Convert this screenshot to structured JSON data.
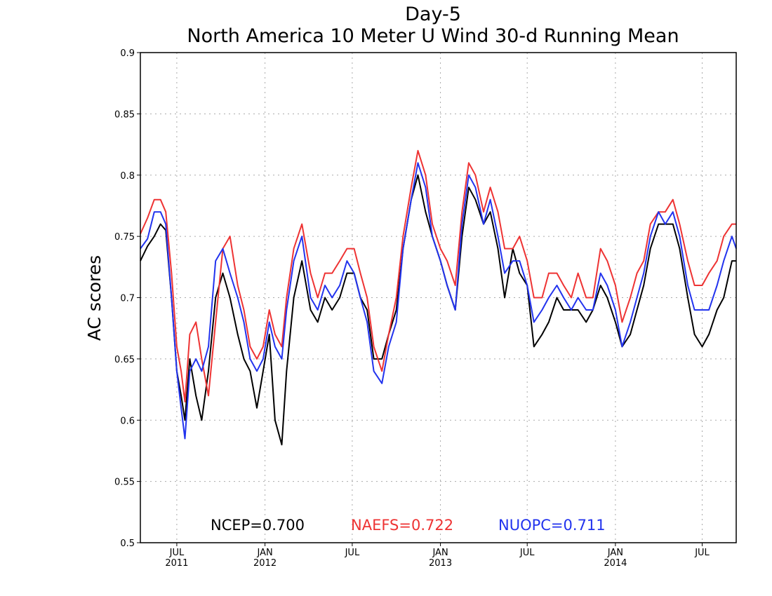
{
  "chart_data": {
    "type": "line",
    "title": "Day-5",
    "subtitle": "North America 10 Meter U Wind 30-d Running Mean",
    "xlabel": "",
    "ylabel": "AC scores",
    "ylim": [
      0.5,
      0.9
    ],
    "xlim": [
      "2011-04-16",
      "2014-09-10"
    ],
    "y_ticks": [
      "0.5",
      "0.55",
      "0.6",
      "0.65",
      "0.7",
      "0.75",
      "0.8",
      "0.85",
      "0.9"
    ],
    "x_ticks": [
      {
        "date": "2011-07-01",
        "month": "JUL",
        "year": "2011"
      },
      {
        "date": "2012-01-01",
        "month": "JAN",
        "year": "2012"
      },
      {
        "date": "2012-07-01",
        "month": "JUL",
        "year": ""
      },
      {
        "date": "2013-01-01",
        "month": "JAN",
        "year": "2013"
      },
      {
        "date": "2013-07-01",
        "month": "JUL",
        "year": ""
      },
      {
        "date": "2014-01-01",
        "month": "JAN",
        "year": "2014"
      },
      {
        "date": "2014-07-01",
        "month": "JUL",
        "year": ""
      }
    ],
    "grid": true,
    "legend_placement": "bottom",
    "legend": [
      {
        "label": "NCEP=0.700",
        "color": "#000000"
      },
      {
        "label": "NAEFS=0.722",
        "color": "#ee3333"
      },
      {
        "label": "NUOPC=0.711",
        "color": "#2233ee"
      }
    ],
    "series": [
      {
        "color": "#000000",
        "x": [
          "2011-04-16",
          "2011-05-01",
          "2011-05-15",
          "2011-05-28",
          "2011-06-08",
          "2011-06-20",
          "2011-07-01",
          "2011-07-10",
          "2011-07-18",
          "2011-07-28",
          "2011-08-10",
          "2011-08-22",
          "2011-09-05",
          "2011-09-20",
          "2011-10-05",
          "2011-10-20",
          "2011-11-05",
          "2011-11-18",
          "2011-12-01",
          "2011-12-15",
          "2011-12-28",
          "2012-01-10",
          "2012-01-22",
          "2012-02-05",
          "2012-02-15",
          "2012-03-01",
          "2012-03-18",
          "2012-04-05",
          "2012-04-20",
          "2012-05-05",
          "2012-05-20",
          "2012-06-05",
          "2012-06-20",
          "2012-07-05",
          "2012-07-18",
          "2012-08-01",
          "2012-08-15",
          "2012-09-01",
          "2012-09-15",
          "2012-10-01",
          "2012-10-15",
          "2012-11-01",
          "2012-11-15",
          "2012-12-01",
          "2012-12-15",
          "2013-01-01",
          "2013-01-15",
          "2013-02-01",
          "2013-02-15",
          "2013-03-01",
          "2013-03-15",
          "2013-04-01",
          "2013-04-15",
          "2013-05-01",
          "2013-05-15",
          "2013-06-01",
          "2013-06-15",
          "2013-07-01",
          "2013-07-15",
          "2013-08-01",
          "2013-08-15",
          "2013-09-01",
          "2013-09-15",
          "2013-10-01",
          "2013-10-15",
          "2013-11-01",
          "2013-11-15",
          "2013-12-01",
          "2013-12-15",
          "2014-01-01",
          "2014-01-15",
          "2014-02-01",
          "2014-02-15",
          "2014-03-01",
          "2014-03-15",
          "2014-04-01",
          "2014-04-15",
          "2014-05-01",
          "2014-05-15",
          "2014-06-01",
          "2014-06-15",
          "2014-07-01",
          "2014-07-15",
          "2014-08-01",
          "2014-08-15",
          "2014-09-01",
          "2014-09-10"
        ],
        "values": [
          0.73,
          0.742,
          0.75,
          0.76,
          0.755,
          0.7,
          0.64,
          0.62,
          0.6,
          0.65,
          0.62,
          0.6,
          0.64,
          0.7,
          0.72,
          0.7,
          0.67,
          0.65,
          0.64,
          0.61,
          0.64,
          0.67,
          0.6,
          0.58,
          0.64,
          0.7,
          0.73,
          0.69,
          0.68,
          0.7,
          0.69,
          0.7,
          0.72,
          0.72,
          0.7,
          0.69,
          0.65,
          0.65,
          0.67,
          0.69,
          0.74,
          0.78,
          0.8,
          0.77,
          0.75,
          0.73,
          0.71,
          0.69,
          0.75,
          0.79,
          0.78,
          0.76,
          0.77,
          0.74,
          0.7,
          0.74,
          0.72,
          0.71,
          0.66,
          0.67,
          0.68,
          0.7,
          0.69,
          0.69,
          0.69,
          0.68,
          0.69,
          0.71,
          0.7,
          0.68,
          0.66,
          0.67,
          0.69,
          0.71,
          0.74,
          0.76,
          0.76,
          0.76,
          0.74,
          0.7,
          0.67,
          0.66,
          0.67,
          0.69,
          0.7,
          0.73,
          0.73
        ]
      },
      {
        "color": "#ee3333",
        "x": [
          "2011-04-16",
          "2011-05-01",
          "2011-05-15",
          "2011-05-28",
          "2011-06-08",
          "2011-06-20",
          "2011-07-01",
          "2011-07-10",
          "2011-07-18",
          "2011-07-28",
          "2011-08-10",
          "2011-08-22",
          "2011-09-05",
          "2011-09-20",
          "2011-10-05",
          "2011-10-20",
          "2011-11-05",
          "2011-11-18",
          "2011-12-01",
          "2011-12-15",
          "2011-12-28",
          "2012-01-10",
          "2012-01-22",
          "2012-02-05",
          "2012-02-15",
          "2012-03-01",
          "2012-03-18",
          "2012-04-05",
          "2012-04-20",
          "2012-05-05",
          "2012-05-20",
          "2012-06-05",
          "2012-06-20",
          "2012-07-05",
          "2012-07-18",
          "2012-08-01",
          "2012-08-15",
          "2012-09-01",
          "2012-09-15",
          "2012-10-01",
          "2012-10-15",
          "2012-11-01",
          "2012-11-15",
          "2012-12-01",
          "2012-12-15",
          "2013-01-01",
          "2013-01-15",
          "2013-02-01",
          "2013-02-15",
          "2013-03-01",
          "2013-03-15",
          "2013-04-01",
          "2013-04-15",
          "2013-05-01",
          "2013-05-15",
          "2013-06-01",
          "2013-06-15",
          "2013-07-01",
          "2013-07-15",
          "2013-08-01",
          "2013-08-15",
          "2013-09-01",
          "2013-09-15",
          "2013-10-01",
          "2013-10-15",
          "2013-11-01",
          "2013-11-15",
          "2013-12-01",
          "2013-12-15",
          "2014-01-01",
          "2014-01-15",
          "2014-02-01",
          "2014-02-15",
          "2014-03-01",
          "2014-03-15",
          "2014-04-01",
          "2014-04-15",
          "2014-05-01",
          "2014-05-15",
          "2014-06-01",
          "2014-06-15",
          "2014-07-01",
          "2014-07-15",
          "2014-08-01",
          "2014-08-15",
          "2014-09-01",
          "2014-09-10"
        ],
        "values": [
          0.752,
          0.765,
          0.78,
          0.78,
          0.77,
          0.72,
          0.66,
          0.64,
          0.615,
          0.67,
          0.68,
          0.65,
          0.62,
          0.68,
          0.74,
          0.75,
          0.71,
          0.69,
          0.66,
          0.65,
          0.66,
          0.69,
          0.67,
          0.66,
          0.7,
          0.74,
          0.76,
          0.72,
          0.7,
          0.72,
          0.72,
          0.73,
          0.74,
          0.74,
          0.72,
          0.7,
          0.66,
          0.64,
          0.67,
          0.7,
          0.75,
          0.79,
          0.82,
          0.8,
          0.76,
          0.74,
          0.73,
          0.71,
          0.77,
          0.81,
          0.8,
          0.77,
          0.79,
          0.77,
          0.74,
          0.74,
          0.75,
          0.73,
          0.7,
          0.7,
          0.72,
          0.72,
          0.71,
          0.7,
          0.72,
          0.7,
          0.7,
          0.74,
          0.73,
          0.71,
          0.68,
          0.7,
          0.72,
          0.73,
          0.76,
          0.77,
          0.77,
          0.78,
          0.76,
          0.73,
          0.71,
          0.71,
          0.72,
          0.73,
          0.75,
          0.76,
          0.76
        ]
      },
      {
        "color": "#2233ee",
        "x": [
          "2011-04-16",
          "2011-05-01",
          "2011-05-15",
          "2011-05-28",
          "2011-06-08",
          "2011-06-20",
          "2011-07-01",
          "2011-07-10",
          "2011-07-18",
          "2011-07-28",
          "2011-08-10",
          "2011-08-22",
          "2011-09-05",
          "2011-09-20",
          "2011-10-05",
          "2011-10-20",
          "2011-11-05",
          "2011-11-18",
          "2011-12-01",
          "2011-12-15",
          "2011-12-28",
          "2012-01-10",
          "2012-01-22",
          "2012-02-05",
          "2012-02-15",
          "2012-03-01",
          "2012-03-18",
          "2012-04-05",
          "2012-04-20",
          "2012-05-05",
          "2012-05-20",
          "2012-06-05",
          "2012-06-20",
          "2012-07-05",
          "2012-07-18",
          "2012-08-01",
          "2012-08-15",
          "2012-09-01",
          "2012-09-15",
          "2012-10-01",
          "2012-10-15",
          "2012-11-01",
          "2012-11-15",
          "2012-12-01",
          "2012-12-15",
          "2013-01-01",
          "2013-01-15",
          "2013-02-01",
          "2013-02-15",
          "2013-03-01",
          "2013-03-15",
          "2013-04-01",
          "2013-04-15",
          "2013-05-01",
          "2013-05-15",
          "2013-06-01",
          "2013-06-15",
          "2013-07-01",
          "2013-07-15",
          "2013-08-01",
          "2013-08-15",
          "2013-09-01",
          "2013-09-15",
          "2013-10-01",
          "2013-10-15",
          "2013-11-01",
          "2013-11-15",
          "2013-12-01",
          "2013-12-15",
          "2014-01-01",
          "2014-01-15",
          "2014-02-01",
          "2014-02-15",
          "2014-03-01",
          "2014-03-15",
          "2014-04-01",
          "2014-04-15",
          "2014-05-01",
          "2014-05-15",
          "2014-06-01",
          "2014-06-15",
          "2014-07-01",
          "2014-07-15",
          "2014-08-01",
          "2014-08-15",
          "2014-09-01",
          "2014-09-10"
        ],
        "values": [
          0.74,
          0.748,
          0.77,
          0.77,
          0.76,
          0.7,
          0.64,
          0.61,
          0.585,
          0.64,
          0.65,
          0.64,
          0.66,
          0.73,
          0.74,
          0.72,
          0.7,
          0.68,
          0.65,
          0.64,
          0.65,
          0.68,
          0.66,
          0.65,
          0.69,
          0.73,
          0.75,
          0.7,
          0.69,
          0.71,
          0.7,
          0.71,
          0.73,
          0.72,
          0.7,
          0.68,
          0.64,
          0.63,
          0.66,
          0.68,
          0.74,
          0.78,
          0.81,
          0.79,
          0.75,
          0.73,
          0.71,
          0.69,
          0.76,
          0.8,
          0.79,
          0.76,
          0.78,
          0.75,
          0.72,
          0.73,
          0.73,
          0.71,
          0.68,
          0.69,
          0.7,
          0.71,
          0.7,
          0.69,
          0.7,
          0.69,
          0.69,
          0.72,
          0.71,
          0.69,
          0.66,
          0.68,
          0.7,
          0.72,
          0.75,
          0.77,
          0.76,
          0.77,
          0.75,
          0.71,
          0.69,
          0.69,
          0.69,
          0.71,
          0.73,
          0.75,
          0.74
        ]
      }
    ]
  }
}
